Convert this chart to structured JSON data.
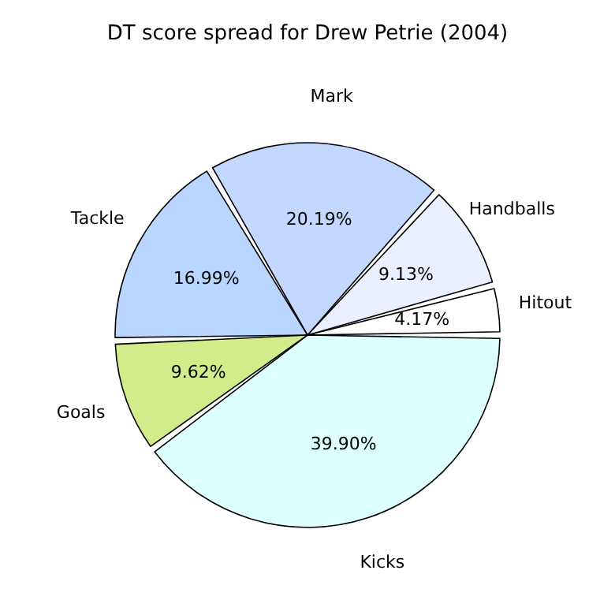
{
  "chart_data": {
    "type": "pie",
    "title": "DT score spread for Drew Petrie (2004)",
    "categories": [
      "Hitout",
      "Handballs",
      "Mark",
      "Tackle",
      "Goals",
      "Kicks"
    ],
    "values": [
      4.17,
      9.13,
      20.19,
      16.99,
      9.62,
      39.9
    ],
    "colors": [
      "#ffffff",
      "#eaf0ff",
      "#c4d8ff",
      "#b8d6ff",
      "#d2ec8c",
      "#dcffff"
    ],
    "value_labels": [
      "4.17%",
      "9.13%",
      "20.19%",
      "16.99%",
      "9.62%",
      "39.90%"
    ]
  }
}
